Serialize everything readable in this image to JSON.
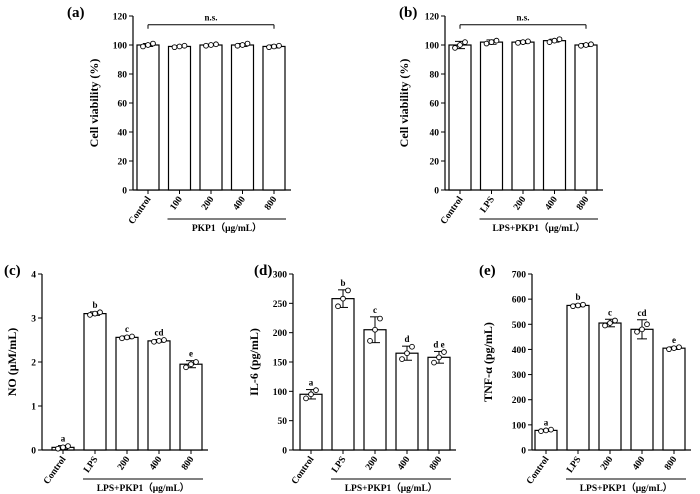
{
  "chart_data": [
    {
      "panel": "(a)",
      "type": "bar",
      "ylabel": "Cell viability (%)",
      "ylim": [
        0,
        120
      ],
      "yticks": [
        0,
        20,
        40,
        60,
        80,
        100,
        120
      ],
      "categories": [
        "Control",
        "100",
        "200",
        "400",
        "800"
      ],
      "values": [
        100,
        99,
        100,
        100,
        99
      ],
      "errors": [
        1,
        0.5,
        0.5,
        1,
        1
      ],
      "points": [
        [
          99,
          100,
          101
        ],
        [
          98.5,
          99,
          99.5
        ],
        [
          99.5,
          100,
          100.5
        ],
        [
          99.5,
          100,
          101
        ],
        [
          98.5,
          99,
          99.5
        ]
      ],
      "significance_bracket": {
        "label": "n.s.",
        "from": 0,
        "to": 4,
        "y": 114
      },
      "letters": [],
      "group_label": {
        "text": "PKP1（μg/mL）",
        "from": 1,
        "to": 4
      }
    },
    {
      "panel": "(b)",
      "type": "bar",
      "ylabel": "Cell viability (%)",
      "ylim": [
        0,
        120
      ],
      "yticks": [
        0,
        20,
        40,
        60,
        80,
        100,
        120
      ],
      "categories": [
        "Control",
        "LPS",
        "200",
        "400",
        "800"
      ],
      "values": [
        100,
        102,
        102,
        103,
        100
      ],
      "errors": [
        2.5,
        1.5,
        1,
        1,
        1
      ],
      "points": [
        [
          98,
          100,
          102
        ],
        [
          101,
          102,
          103
        ],
        [
          101.5,
          102,
          102.5
        ],
        [
          102,
          103,
          104
        ],
        [
          99.5,
          100,
          100.5
        ]
      ],
      "significance_bracket": {
        "label": "n.s.",
        "from": 0,
        "to": 4,
        "y": 114
      },
      "letters": [],
      "group_label": {
        "text": "LPS+PKP1（μg/mL）",
        "from": 1,
        "to": 4
      }
    },
    {
      "panel": "(c)",
      "type": "bar",
      "ylabel": "NO (μM/mL)",
      "ylim": [
        0,
        4
      ],
      "yticks": [
        0,
        1,
        2,
        3,
        4
      ],
      "categories": [
        "Control",
        "LPS",
        "200",
        "400",
        "800"
      ],
      "values": [
        0.06,
        3.1,
        2.56,
        2.48,
        1.95
      ],
      "errors": [
        0.04,
        0.04,
        0.03,
        0.03,
        0.08
      ],
      "points": [
        [
          0.03,
          0.06,
          0.09
        ],
        [
          3.07,
          3.1,
          3.13
        ],
        [
          2.54,
          2.56,
          2.58
        ],
        [
          2.46,
          2.48,
          2.5
        ],
        [
          1.88,
          1.95,
          2.0
        ]
      ],
      "significance_bracket": null,
      "letters": [
        "a",
        "b",
        "c",
        "cd",
        "e"
      ],
      "group_label": {
        "text": "LPS+PKP1（μg/mL）",
        "from": 1,
        "to": 4
      }
    },
    {
      "panel": "(d)",
      "type": "bar",
      "ylabel": "IL-6 (pg/mL)",
      "ylim": [
        0,
        300
      ],
      "yticks": [
        0,
        50,
        100,
        150,
        200,
        250,
        300
      ],
      "categories": [
        "Control",
        "LPS",
        "200",
        "400",
        "800"
      ],
      "values": [
        95,
        258,
        205,
        165,
        158
      ],
      "errors": [
        8,
        15,
        22,
        12,
        10
      ],
      "points": [
        [
          88,
          95,
          102
        ],
        [
          245,
          258,
          272
        ],
        [
          186,
          205,
          224
        ],
        [
          155,
          165,
          176
        ],
        [
          149,
          158,
          167
        ]
      ],
      "significance_bracket": null,
      "letters": [
        "a",
        "b",
        "c",
        "d",
        "d e"
      ],
      "group_label": {
        "text": "LPS+PKP1（μg/mL）",
        "from": 1,
        "to": 4
      }
    },
    {
      "panel": "(e)",
      "type": "bar",
      "ylabel": "TNF-α (pg/mL)",
      "ylim": [
        0,
        700
      ],
      "yticks": [
        0,
        100,
        200,
        300,
        400,
        500,
        600,
        700
      ],
      "categories": [
        "Control",
        "LPS",
        "200",
        "400",
        "800"
      ],
      "values": [
        78,
        575,
        505,
        480,
        405
      ],
      "errors": [
        4,
        5,
        15,
        38,
        5
      ],
      "points": [
        [
          75,
          78,
          81
        ],
        [
          572,
          575,
          578
        ],
        [
          495,
          505,
          515
        ],
        [
          470,
          480,
          500
        ],
        [
          401,
          405,
          409
        ]
      ],
      "significance_bracket": null,
      "letters": [
        "a",
        "b",
        "c",
        "cd",
        "e"
      ],
      "group_label": {
        "text": "LPS+PKP1（μg/mL）",
        "from": 1,
        "to": 4
      }
    }
  ]
}
